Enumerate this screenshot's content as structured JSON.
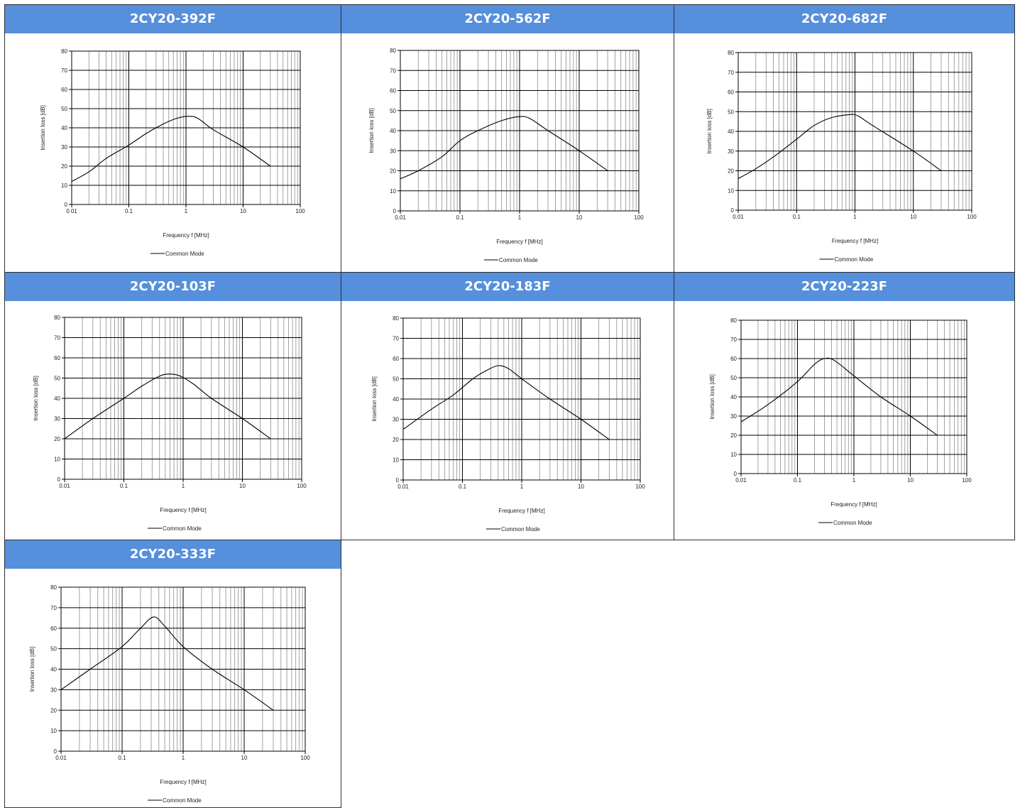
{
  "chart_data": [
    {
      "type": "line",
      "title": "2CY20-392F",
      "xlabel": "Frequency f [MHz]",
      "ylabel": "Insertion loss [dB]",
      "xscale": "log",
      "xlim": [
        0.01,
        100
      ],
      "ylim": [
        0,
        80
      ],
      "xticks": [
        "0.01",
        "0.1",
        "1",
        "10",
        "100"
      ],
      "yticks": [
        "0",
        "10",
        "20",
        "30",
        "40",
        "50",
        "60",
        "70",
        "80"
      ],
      "series": [
        {
          "name": "Common Mode",
          "points": [
            [
              0.01,
              12
            ],
            [
              0.02,
              17
            ],
            [
              0.04,
              24
            ],
            [
              0.1,
              31
            ],
            [
              0.2,
              37
            ],
            [
              0.4,
              42
            ],
            [
              0.7,
              45
            ],
            [
              1.1,
              46
            ],
            [
              1.6,
              45
            ],
            [
              3,
              39
            ],
            [
              10,
              30
            ],
            [
              30,
              20
            ]
          ]
        }
      ],
      "legend": "bottom"
    },
    {
      "type": "line",
      "title": "2CY20-562F",
      "xlabel": "Frequency f [MHz]",
      "ylabel": "Insertion loss [dB]",
      "xscale": "log",
      "xlim": [
        0.01,
        100
      ],
      "ylim": [
        0,
        80
      ],
      "xticks": [
        "0.01",
        "0.1",
        "1",
        "10",
        "100"
      ],
      "yticks": [
        "0",
        "10",
        "20",
        "30",
        "40",
        "50",
        "60",
        "70",
        "80"
      ],
      "series": [
        {
          "name": "Common Mode",
          "points": [
            [
              0.01,
              16
            ],
            [
              0.02,
              20
            ],
            [
              0.05,
              27
            ],
            [
              0.1,
              35
            ],
            [
              0.2,
              40
            ],
            [
              0.5,
              45
            ],
            [
              1,
              47
            ],
            [
              1.5,
              46
            ],
            [
              3,
              40
            ],
            [
              10,
              30
            ],
            [
              30,
              20
            ]
          ]
        }
      ],
      "legend": "bottom"
    },
    {
      "type": "line",
      "title": "2CY20-682F",
      "xlabel": "Frequency f [MHz]",
      "ylabel": "Insertion loss [dB]",
      "xscale": "log",
      "xlim": [
        0.01,
        100
      ],
      "ylim": [
        0,
        80
      ],
      "xticks": [
        "0.01",
        "0.1",
        "1",
        "10",
        "100"
      ],
      "yticks": [
        "0",
        "10",
        "20",
        "30",
        "40",
        "50",
        "60",
        "70",
        "80"
      ],
      "series": [
        {
          "name": "Common Mode",
          "points": [
            [
              0.01,
              16
            ],
            [
              0.02,
              21
            ],
            [
              0.04,
              27
            ],
            [
              0.1,
              36
            ],
            [
              0.2,
              43
            ],
            [
              0.4,
              47
            ],
            [
              0.8,
              48.5
            ],
            [
              1.1,
              48
            ],
            [
              2,
              43
            ],
            [
              10,
              30
            ],
            [
              30,
              20
            ]
          ]
        }
      ],
      "legend": "bottom"
    },
    {
      "type": "line",
      "title": "2CY20-103F",
      "xlabel": "Frequency f [MHz]",
      "ylabel": "Insertion loss [dB]",
      "xscale": "log",
      "xlim": [
        0.01,
        100
      ],
      "ylim": [
        0,
        80
      ],
      "xticks": [
        "0.01",
        "0.1",
        "1",
        "10",
        "100"
      ],
      "yticks": [
        "0",
        "10",
        "20",
        "30",
        "40",
        "50",
        "60",
        "70",
        "80"
      ],
      "series": [
        {
          "name": "Common Mode",
          "points": [
            [
              0.01,
              20
            ],
            [
              0.03,
              30
            ],
            [
              0.1,
              40
            ],
            [
              0.2,
              46
            ],
            [
              0.4,
              51
            ],
            [
              0.6,
              52
            ],
            [
              0.9,
              51
            ],
            [
              1.5,
              47
            ],
            [
              3,
              40
            ],
            [
              10,
              30
            ],
            [
              30,
              20
            ]
          ]
        }
      ],
      "legend": "bottom"
    },
    {
      "type": "line",
      "title": "2CY20-183F",
      "xlabel": "Frequency f [MHz]",
      "ylabel": "Insertion loss [dB]",
      "xscale": "log",
      "xlim": [
        0.01,
        100
      ],
      "ylim": [
        0,
        80
      ],
      "xticks": [
        "0.01",
        "0.1",
        "1",
        "10",
        "100"
      ],
      "yticks": [
        "0",
        "10",
        "20",
        "30",
        "40",
        "50",
        "60",
        "70",
        "80"
      ],
      "series": [
        {
          "name": "Common Mode",
          "points": [
            [
              0.01,
              25
            ],
            [
              0.03,
              35
            ],
            [
              0.07,
              42
            ],
            [
              0.15,
              50
            ],
            [
              0.25,
              54
            ],
            [
              0.4,
              56.5
            ],
            [
              0.6,
              55
            ],
            [
              1,
              50
            ],
            [
              3,
              40
            ],
            [
              10,
              30
            ],
            [
              30,
              20
            ]
          ]
        }
      ],
      "legend": "bottom"
    },
    {
      "type": "line",
      "title": "2CY20-223F",
      "xlabel": "Frequency f [MHz]",
      "ylabel": "Insertion loss [dB]",
      "xscale": "log",
      "xlim": [
        0.01,
        100
      ],
      "ylim": [
        0,
        80
      ],
      "xticks": [
        "0.01",
        "0.1",
        "1",
        "10",
        "100"
      ],
      "yticks": [
        "0",
        "10",
        "20",
        "30",
        "40",
        "50",
        "60",
        "70",
        "80"
      ],
      "series": [
        {
          "name": "Common Mode",
          "points": [
            [
              0.01,
              27
            ],
            [
              0.03,
              36
            ],
            [
              0.1,
              48
            ],
            [
              0.2,
              57
            ],
            [
              0.3,
              60
            ],
            [
              0.45,
              59
            ],
            [
              1,
              51
            ],
            [
              3,
              40
            ],
            [
              10,
              30
            ],
            [
              30,
              20
            ]
          ]
        }
      ],
      "legend": "bottom"
    },
    {
      "type": "line",
      "title": "2CY20-333F",
      "xlabel": "Frequency f [MHz]",
      "ylabel": "Insertion loss [dB]",
      "xscale": "log",
      "xlim": [
        0.01,
        100
      ],
      "ylim": [
        0,
        80
      ],
      "xticks": [
        "0.01",
        "0.1",
        "1",
        "10",
        "100"
      ],
      "yticks": [
        "0",
        "10",
        "20",
        "30",
        "40",
        "50",
        "60",
        "70",
        "80"
      ],
      "series": [
        {
          "name": "Common Mode",
          "points": [
            [
              0.01,
              30
            ],
            [
              0.03,
              40
            ],
            [
              0.1,
              51
            ],
            [
              0.2,
              60
            ],
            [
              0.33,
              65.5
            ],
            [
              0.5,
              61
            ],
            [
              1,
              51
            ],
            [
              3,
              40
            ],
            [
              10,
              30
            ],
            [
              30,
              20
            ]
          ]
        }
      ],
      "legend": "bottom"
    }
  ]
}
